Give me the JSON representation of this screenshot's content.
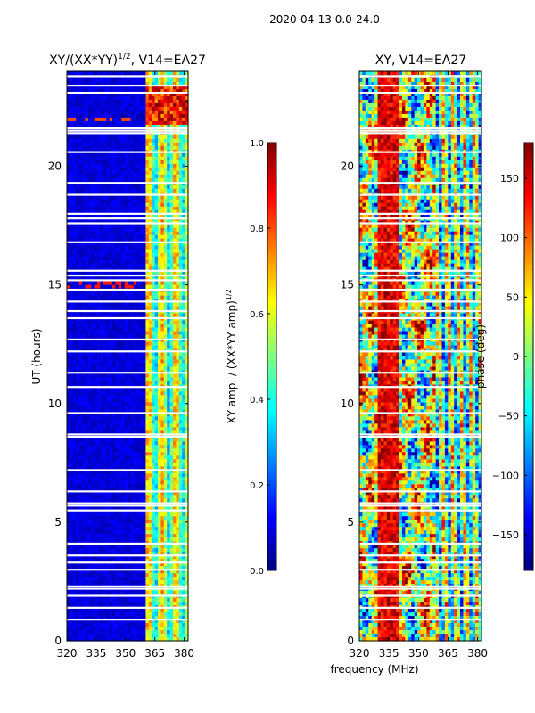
{
  "suptitle": "2020-04-13 0.0-24.0",
  "colormap": [
    "#00007f",
    "#0000ff",
    "#007fff",
    "#00ffff",
    "#7fff7f",
    "#ffff00",
    "#ff7f00",
    "#ff0000",
    "#7f0000"
  ],
  "chart_data": [
    {
      "type": "heatmap",
      "title": "XY/(XX*YY)",
      "title_exp": "1/2",
      "title_tail": ", V14=EA27",
      "xlabel": "",
      "ylabel": "UT (hours)",
      "xlim": [
        320,
        382
      ],
      "ylim": [
        0,
        24
      ],
      "xticks": [
        320,
        335,
        350,
        365,
        380
      ],
      "yticks": [
        0,
        5,
        10,
        15,
        20
      ],
      "description": "normalized XY amplitude vs frequency and time; mostly low (blue) below ~360 MHz, elevated (cyan/green/yellow) in bands 360-382 MHz with a strong red/yellow patch near 22-23 h",
      "colorbar": {
        "label": "XY amp. / (XX*YY amp)",
        "label_exp": "1/2",
        "range": [
          0.0,
          1.0
        ],
        "ticks": [
          "0.0",
          "0.2",
          "0.4",
          "0.6",
          "0.8",
          "1.0"
        ]
      }
    },
    {
      "type": "heatmap",
      "title": "XY, V14=EA27",
      "xlabel": "frequency (MHz)",
      "ylabel": "",
      "xlim": [
        320,
        382
      ],
      "ylim": [
        0,
        24
      ],
      "xticks": [
        320,
        335,
        350,
        365,
        380
      ],
      "yticks": [
        0,
        5,
        10,
        15,
        20
      ],
      "description": "XY phase vs frequency and time; mixed phases with mostly red/orange around 335 MHz and blue/cyan/yellow bands at 360-382 MHz",
      "colorbar": {
        "label": "phase (deg)",
        "range": [
          -180,
          180
        ],
        "ticks": [
          "150",
          "100",
          "50",
          "0",
          "−50",
          "−100",
          "−150"
        ],
        "tick_values": [
          150,
          100,
          50,
          0,
          -50,
          -100,
          -150
        ]
      }
    }
  ],
  "gap_hours": [
    0.9,
    1.4,
    1.9,
    2.2,
    2.3,
    3.0,
    3.3,
    3.6,
    4.1,
    5.5,
    5.7,
    5.8,
    6.3,
    7.2,
    8.6,
    8.7,
    9.6,
    10.7,
    11.3,
    12.2,
    12.7,
    13.6,
    13.9,
    14.3,
    14.8,
    15.2,
    15.4,
    15.6,
    16.8,
    17.6,
    17.8,
    18.0,
    18.8,
    19.3,
    20.6,
    21.4,
    21.5,
    21.6,
    23.1,
    23.4,
    23.8
  ]
}
